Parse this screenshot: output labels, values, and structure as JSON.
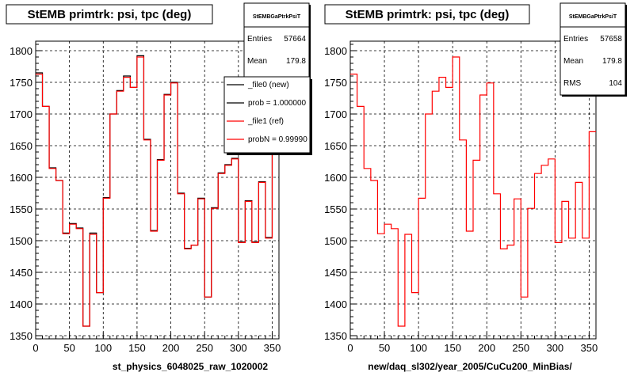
{
  "chart_data": [
    {
      "type": "line",
      "title": "StEMB primtrk: psi, tpc (deg)",
      "xlabel": "st_physics_6048025_raw_1020002",
      "xlim": [
        0,
        360
      ],
      "ylim": [
        1345,
        1815
      ],
      "x_ticks": [
        0,
        50,
        100,
        150,
        200,
        250,
        300,
        350
      ],
      "y_ticks": [
        1350,
        1400,
        1450,
        1500,
        1550,
        1600,
        1650,
        1700,
        1750,
        1800
      ],
      "grid": true,
      "bin_width": 10,
      "series": [
        {
          "name": "_file0 (new)",
          "color": "#000000",
          "values": [
            1765,
            1712,
            1615,
            1595,
            1512,
            1527,
            1520,
            1365,
            1512,
            1418,
            1568,
            1700,
            1737,
            1760,
            1742,
            1792,
            1660,
            1516,
            1628,
            1731,
            1750,
            1575,
            1488,
            1493,
            1567,
            1411,
            1552,
            1607,
            1620,
            1630,
            1498,
            1563,
            1498,
            1593,
            1505,
            1672
          ]
        },
        {
          "name": "_file1 (ref)",
          "color": "#ff0000",
          "values": [
            1763,
            1712,
            1614,
            1595,
            1511,
            1526,
            1519,
            1365,
            1510,
            1418,
            1567,
            1700,
            1736,
            1758,
            1742,
            1790,
            1659,
            1515,
            1627,
            1730,
            1749,
            1574,
            1487,
            1493,
            1566,
            1411,
            1551,
            1606,
            1619,
            1629,
            1497,
            1562,
            1497,
            1592,
            1504,
            1671
          ]
        }
      ],
      "stats": {
        "name": "StEMBGaPtrkPsiT",
        "entries_label": "Entries",
        "entries": "57664",
        "mean_label": "Mean",
        "mean": "179.8"
      },
      "legend": [
        "_file0 (new)",
        "prob = 1.000000",
        "_file1 (ref)",
        "probN = 0.99990"
      ]
    },
    {
      "type": "line",
      "title": "StEMB primtrk: psi, tpc (deg)",
      "xlabel": "new/daq_sl302/year_2005/CuCu200_MinBias/",
      "xlim": [
        0,
        360
      ],
      "ylim": [
        1345,
        1815
      ],
      "x_ticks": [
        0,
        50,
        100,
        150,
        200,
        250,
        300,
        350
      ],
      "y_ticks": [
        1350,
        1400,
        1450,
        1500,
        1550,
        1600,
        1650,
        1700,
        1750,
        1800
      ],
      "grid": true,
      "bin_width": 10,
      "series": [
        {
          "color": "#ff0000",
          "values": [
            1763,
            1712,
            1614,
            1595,
            1511,
            1526,
            1519,
            1365,
            1510,
            1418,
            1567,
            1700,
            1736,
            1758,
            1742,
            1790,
            1659,
            1515,
            1627,
            1730,
            1749,
            1574,
            1487,
            1493,
            1566,
            1411,
            1551,
            1606,
            1619,
            1629,
            1497,
            1562,
            1504,
            1592,
            1504,
            1672
          ]
        }
      ],
      "stats": {
        "name": "StEMBGaPtrkPsiT",
        "entries_label": "Entries",
        "entries": "57658",
        "mean_label": "Mean",
        "mean": "179.8",
        "rms_label": "RMS",
        "rms": "104"
      }
    }
  ]
}
